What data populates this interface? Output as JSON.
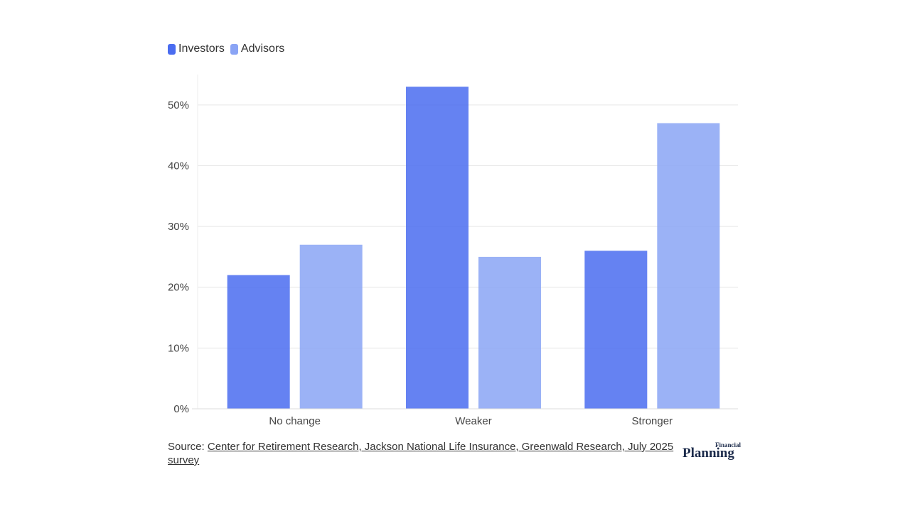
{
  "legend": {
    "items": [
      {
        "label": "Investors",
        "color": "#4a6cf0"
      },
      {
        "label": "Advisors",
        "color": "#8aa4f5"
      }
    ]
  },
  "chart_data": {
    "type": "bar",
    "title": "",
    "xlabel": "",
    "ylabel": "",
    "categories": [
      "No change",
      "Weaker",
      "Stronger"
    ],
    "series": [
      {
        "name": "Investors",
        "values": [
          22,
          53,
          26
        ],
        "color": "#4a6cf0"
      },
      {
        "name": "Advisors",
        "values": [
          27,
          25,
          47
        ],
        "color": "#8aa4f5"
      }
    ],
    "ylim": [
      0,
      55
    ],
    "yticks": [
      0,
      10,
      20,
      30,
      40,
      50
    ],
    "ytick_labels": [
      "0%",
      "10%",
      "20%",
      "30%",
      "40%",
      "50%"
    ],
    "grid": true,
    "legend": "top-left"
  },
  "source": {
    "prefix": "Source: ",
    "link_text": "Center for Retirement Research, Jackson National Life Insurance, Greenwald Research, July 2025 survey"
  },
  "logo": {
    "small": "Financial",
    "big": "Planning"
  }
}
